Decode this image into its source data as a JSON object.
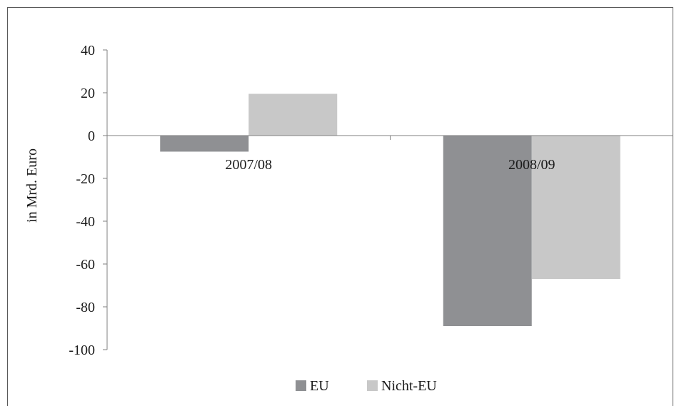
{
  "chart_data": {
    "type": "bar",
    "categories": [
      "2007/08",
      "2008/09"
    ],
    "series": [
      {
        "name": "EU",
        "values": [
          -7.5,
          -89
        ]
      },
      {
        "name": "Nicht-EU",
        "values": [
          19.5,
          -67
        ]
      }
    ],
    "title": "",
    "xlabel": "",
    "ylabel": "in Mrd. Euro",
    "ylim": [
      -100,
      40
    ],
    "yticks": [
      "40",
      "20",
      "0",
      "-20",
      "-40",
      "-60",
      "-80",
      "-100"
    ],
    "grid": false,
    "legend_position": "bottom",
    "colors": {
      "EU": "#8f9093",
      "Nicht-EU": "#c8c8c8",
      "axis": "#808080"
    }
  }
}
